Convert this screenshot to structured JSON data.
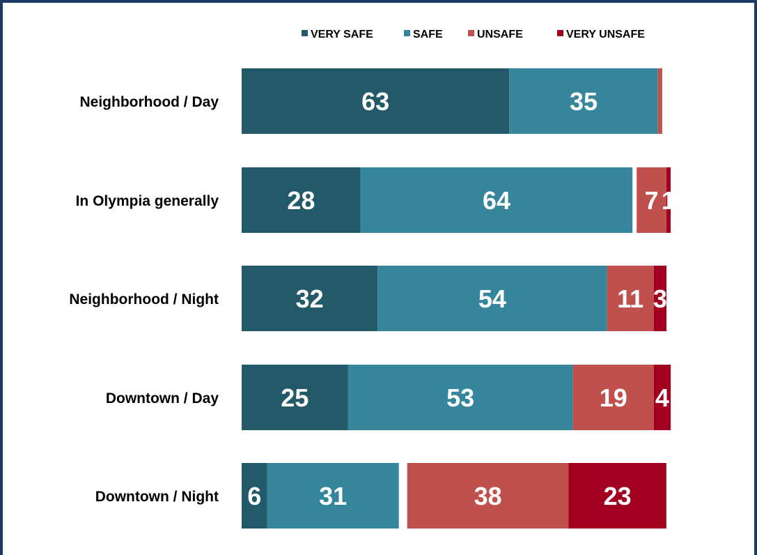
{
  "title": "",
  "colors": {
    "very_safe": "#235a6a",
    "safe": "#35869c",
    "unsafe": "#c0504d",
    "very_unsafe": "#a2001f",
    "border": "#1f3b63"
  },
  "chart_data": {
    "type": "bar",
    "orientation": "horizontal",
    "stacked": true,
    "title": "",
    "xlabel": "",
    "ylabel": "",
    "xlim": [
      0,
      100
    ],
    "grid": false,
    "legend_position": "top",
    "categories": [
      "Neighborhood / Day",
      "In Olympia generally",
      "Neighborhood / Night",
      "Downtown / Day",
      "Downtown / Night"
    ],
    "series": [
      {
        "name": "VERY SAFE",
        "values": [
          63,
          28,
          32,
          25,
          6
        ],
        "labels": [
          "63",
          "28",
          "32",
          "25",
          "6"
        ]
      },
      {
        "name": "SAFE",
        "values": [
          35,
          64,
          54,
          53,
          31
        ],
        "labels": [
          "35",
          "64",
          "54",
          "53",
          "31"
        ]
      },
      {
        "name": "UNSAFE",
        "values": [
          1,
          7,
          11,
          19,
          38
        ],
        "labels": [
          "",
          "7",
          "11",
          "19",
          "38"
        ]
      },
      {
        "name": "VERY UNSAFE",
        "values": [
          0,
          1,
          3,
          4,
          23
        ],
        "labels": [
          "",
          "1",
          "3",
          "4",
          "23"
        ]
      }
    ]
  }
}
